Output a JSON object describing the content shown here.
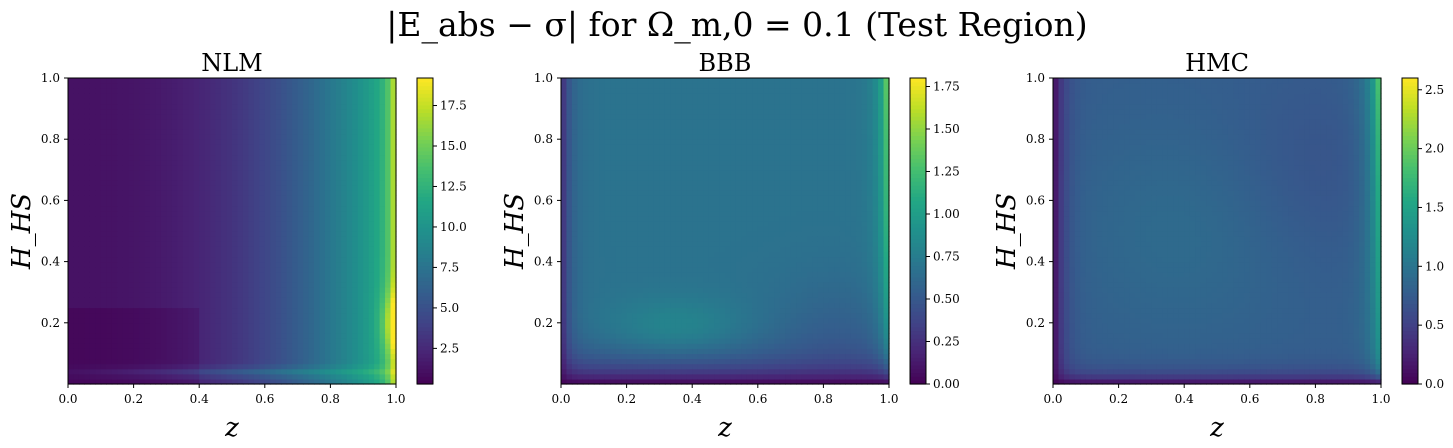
{
  "figure": {
    "suptitle": "|E_abs − σ| for Ω_m,0 = 0.1 (Test Region)"
  },
  "chart_data": [
    {
      "type": "heatmap",
      "title": "NLM",
      "xlabel": "z",
      "ylabel": "H_HS",
      "xlim": [
        0.0,
        1.0
      ],
      "ylim": [
        0.0,
        1.0
      ],
      "xticks": [
        "0.0",
        "0.2",
        "0.4",
        "0.6",
        "0.8",
        "1.0"
      ],
      "yticks": [
        "0.2",
        "0.4",
        "0.6",
        "0.8",
        "1.0"
      ],
      "colormap": "viridis",
      "colorbar": {
        "range": [
          0.3,
          19.2
        ],
        "ticks": [
          "2.5",
          "5.0",
          "7.5",
          "10.0",
          "12.5",
          "15.0",
          "17.5"
        ]
      },
      "features": "Low (~1) across most z < 0.5; increases steadily toward z = 1 where values reach ~17-19; a hot spot near z ≈ 0.98-1.0, H_HS ≈ 0.2; a thin bright streak along H_HS ≈ 0.03-0.05"
    },
    {
      "type": "heatmap",
      "title": "BBB",
      "xlabel": "z",
      "ylabel": "H_HS",
      "xlim": [
        0.0,
        1.0
      ],
      "ylim": [
        0.0,
        1.0
      ],
      "xticks": [
        "0.0",
        "0.2",
        "0.4",
        "0.6",
        "0.8",
        "1.0"
      ],
      "yticks": [
        "0.2",
        "0.4",
        "0.6",
        "0.8",
        "1.0"
      ],
      "colormap": "viridis",
      "colorbar": {
        "range": [
          0.0,
          1.8
        ],
        "ticks": [
          "0.00",
          "0.25",
          "0.50",
          "0.75",
          "1.00",
          "1.25",
          "1.50",
          "1.75"
        ]
      },
      "features": "Mostly ~0.7; near-zero strip at small H_HS and small z; brighter (~0.9) blob near z ≈ 0.35, H_HS ≈ 0.2; values rise to ~1.8 along z ≈ 1.0 at high H_HS"
    },
    {
      "type": "heatmap",
      "title": "HMC",
      "xlabel": "z",
      "ylabel": "H_HS",
      "xlim": [
        0.0,
        1.0
      ],
      "ylim": [
        0.0,
        1.0
      ],
      "xticks": [
        "0.0",
        "0.2",
        "0.4",
        "0.6",
        "0.8",
        "1.0"
      ],
      "yticks": [
        "0.2",
        "0.4",
        "0.6",
        "0.8",
        "1.0"
      ],
      "colormap": "viridis",
      "colorbar": {
        "range": [
          0.0,
          2.6
        ],
        "ticks": [
          "0.0",
          "0.5",
          "1.0",
          "1.5",
          "2.0",
          "2.5"
        ]
      },
      "features": "Mostly ~0.8-0.9; dark edges at small z and small H_HS; darker region near z ≈ 0.8, H_HS ≈ 0.7; values rise to ~2.6 along z ≈ 1.0 at high H_HS"
    }
  ]
}
